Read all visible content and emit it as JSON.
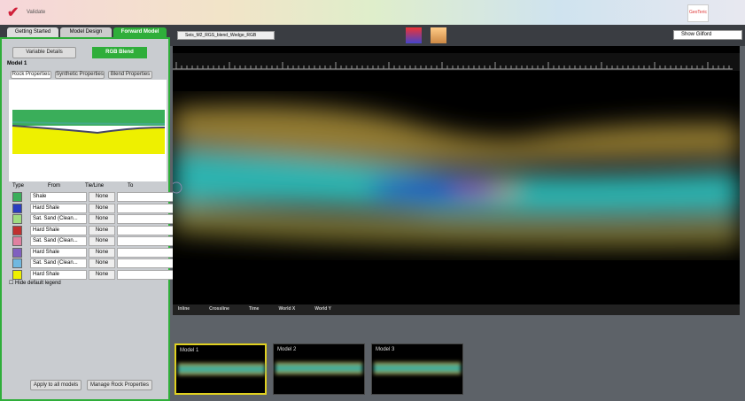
{
  "window": {
    "title": "Validate",
    "logo": "GeoTeric"
  },
  "tabs": [
    "Getting Started",
    "Model Design",
    "Forward Model"
  ],
  "left_panel": {
    "buttons": [
      "Variable Details",
      "RGB Blend"
    ],
    "model_title": "Model 1",
    "subtabs": [
      "Rock Properties",
      "Synthetic Properties",
      "Blend Properties"
    ],
    "table_headers": [
      "Type",
      "From",
      "Tie/Line",
      "To"
    ],
    "rows": [
      {
        "type": "Shale",
        "tie": "None"
      },
      {
        "type": "Hard Shale",
        "tie": "None"
      },
      {
        "type": "Sat. Sand (Clean...",
        "tie": "None"
      },
      {
        "type": "Hard Shale",
        "tie": "None"
      },
      {
        "type": "Sat. Sand (Clean...",
        "tie": "None"
      },
      {
        "type": "Hard Shale",
        "tie": "None"
      },
      {
        "type": "Sat. Sand (Clean...",
        "tie": "None"
      },
      {
        "type": "Hard Shale",
        "tie": "None"
      }
    ],
    "checkbox": "Hide default legend",
    "bottom_buttons": [
      "Apply to all models",
      "Manage Rock Properties"
    ]
  },
  "toolbar": {
    "dataset": "Seis_M2_RGS_blend_Wedge_RGB",
    "search": "Show Gilford"
  },
  "status": [
    "Inline",
    "Crossline",
    "Time",
    "World X",
    "World Y"
  ],
  "thumbnails": [
    "Model 1",
    "Model 2",
    "Model 3"
  ]
}
